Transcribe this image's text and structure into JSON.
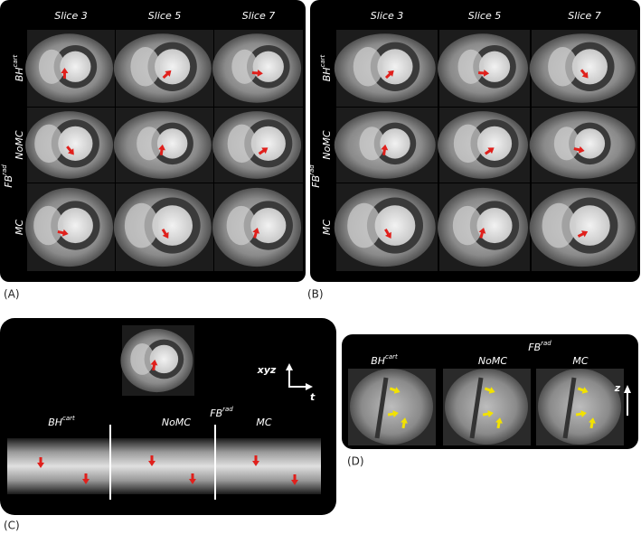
{
  "panel_a": {
    "label": "(A)",
    "columns": [
      "Slice 3",
      "Slice 5",
      "Slice 7"
    ],
    "rows": [
      {
        "main": "BH",
        "sup": "cart"
      },
      {
        "main": "NoMC"
      },
      {
        "main": "MC"
      }
    ],
    "group": {
      "main": "FB",
      "sup": "rad"
    }
  },
  "panel_b": {
    "label": "(B)",
    "columns": [
      "Slice 3",
      "Slice 5",
      "Slice 7"
    ],
    "rows": [
      {
        "main": "BH",
        "sup": "cart"
      },
      {
        "main": "NoMC"
      },
      {
        "main": "MC"
      }
    ],
    "group": {
      "main": "FB",
      "sup": "rad"
    }
  },
  "panel_c": {
    "label": "(C)",
    "axis_space": "xyz",
    "axis_time": "t",
    "segments": [
      {
        "main": "BH",
        "sup": "cart"
      },
      {
        "main": "NoMC"
      },
      {
        "main": "MC"
      }
    ],
    "group": {
      "main": "FB",
      "sup": "rad"
    }
  },
  "panel_d": {
    "label": "(D)",
    "axis": "z",
    "segments": [
      {
        "main": "BH",
        "sup": "cart"
      },
      {
        "main": "NoMC"
      },
      {
        "main": "MC"
      }
    ],
    "group": {
      "main": "FB",
      "sup": "rad"
    }
  }
}
